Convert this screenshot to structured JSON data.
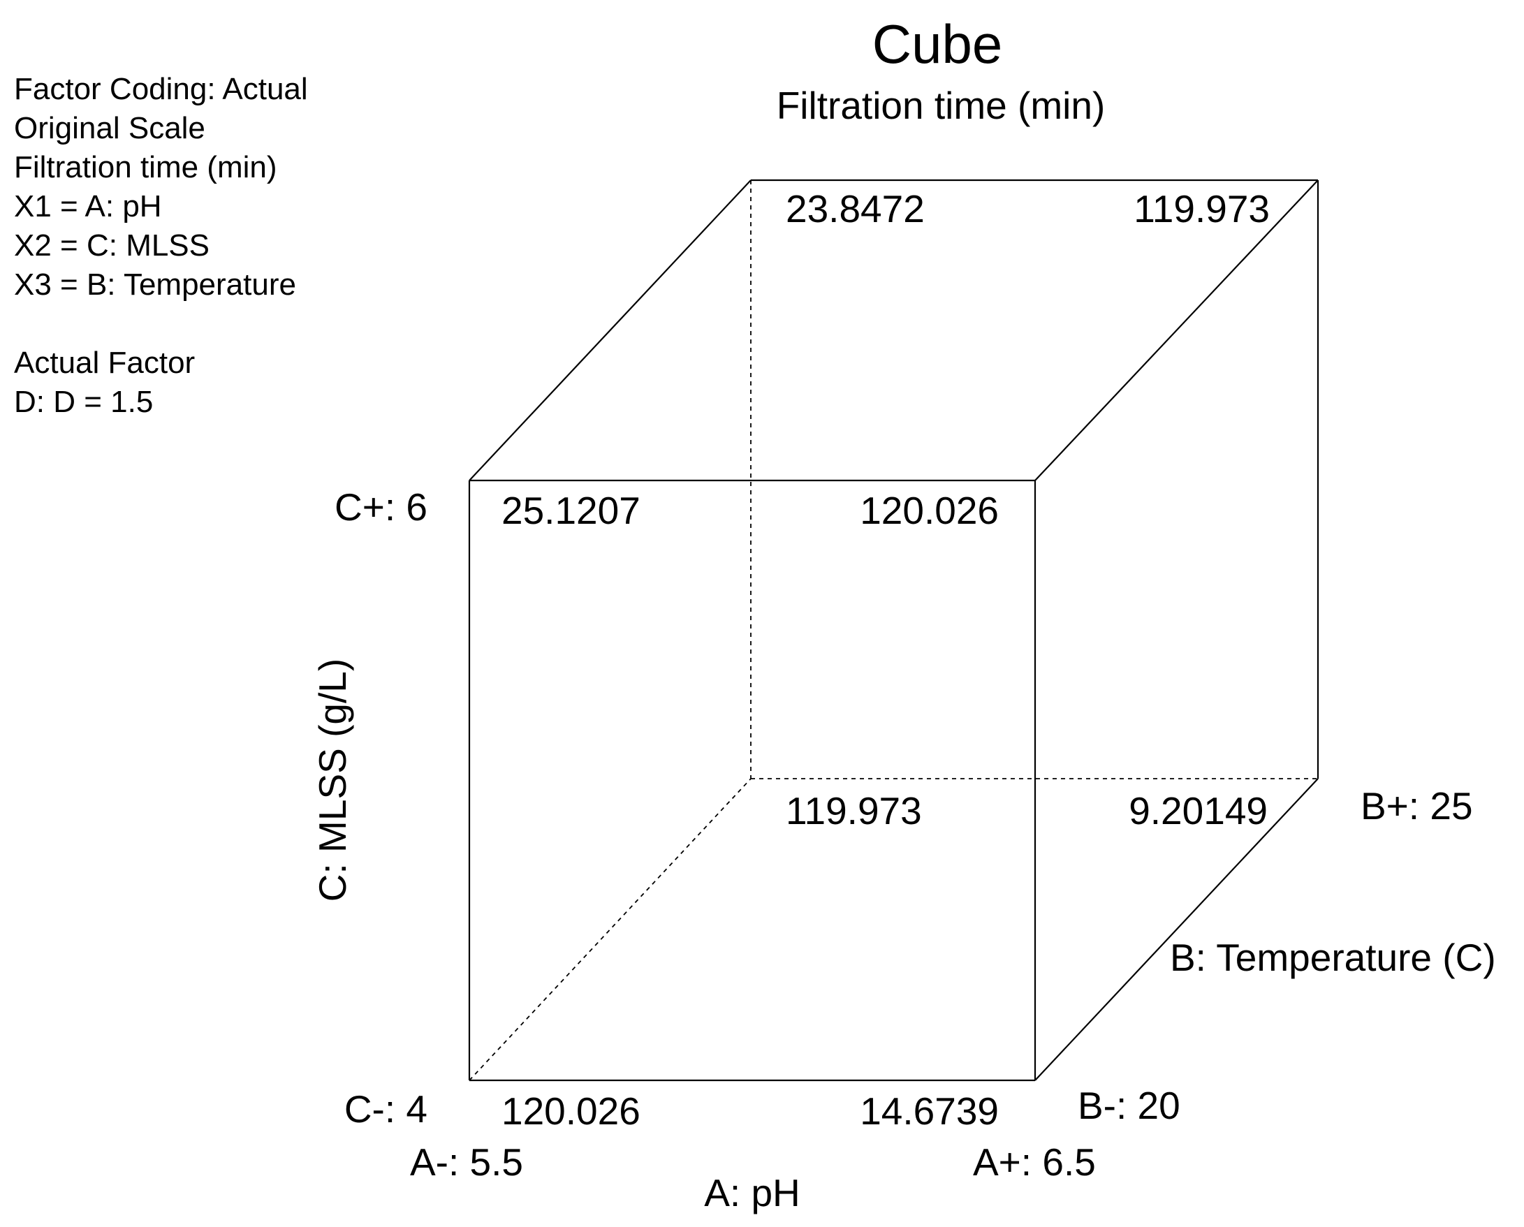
{
  "chart_data": {
    "type": "cube",
    "title": "Cube",
    "subtitle": "Filtration time (min)",
    "info": {
      "lines": [
        "Factor Coding: Actual",
        "Original Scale",
        "Filtration time (min)",
        "X1 = A: pH",
        "X2 = C: MLSS",
        "X3 = B: Temperature",
        "",
        "Actual Factor",
        "D: D = 1.5"
      ]
    },
    "axes": {
      "x": {
        "label": "A: pH",
        "low_label": "A-: 5.5",
        "high_label": "A+: 6.5",
        "low": 5.5,
        "high": 6.5
      },
      "y": {
        "label": "C: MLSS (g/L)",
        "low_label": "C-: 4",
        "high_label": "C+: 6",
        "low": 4,
        "high": 6
      },
      "z": {
        "label": "B: Temperature (C)",
        "low_label": "B-: 20",
        "high_label": "B+: 25",
        "low": 20,
        "high": 25
      }
    },
    "vertices": [
      {
        "A": "-",
        "B": "-",
        "C": "-",
        "value": "120.026"
      },
      {
        "A": "+",
        "B": "-",
        "C": "-",
        "value": "14.6739"
      },
      {
        "A": "-",
        "B": "-",
        "C": "+",
        "value": "25.1207"
      },
      {
        "A": "+",
        "B": "-",
        "C": "+",
        "value": "120.026"
      },
      {
        "A": "-",
        "B": "+",
        "C": "-",
        "value": "119.973"
      },
      {
        "A": "+",
        "B": "+",
        "C": "-",
        "value": "9.20149"
      },
      {
        "A": "-",
        "B": "+",
        "C": "+",
        "value": "23.8472"
      },
      {
        "A": "+",
        "B": "+",
        "C": "+",
        "value": "119.973"
      }
    ]
  }
}
